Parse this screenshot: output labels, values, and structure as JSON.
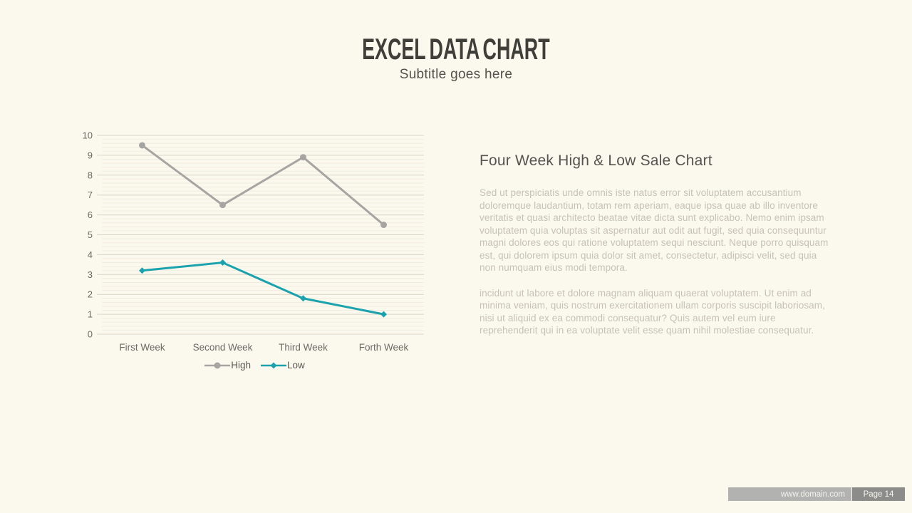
{
  "slide": {
    "title": "EXCEL DATA CHART",
    "subtitle": "Subtitle goes here"
  },
  "content": {
    "heading": "Four Week High & Low Sale Chart",
    "paragraph1": "Sed ut perspiciatis unde omnis iste natus error sit voluptatem accusantium doloremque laudantium, totam rem aperiam, eaque ipsa quae ab illo inventore veritatis et quasi architecto beatae vitae dicta sunt explicabo. Nemo enim ipsam voluptatem quia voluptas sit aspernatur aut odit aut fugit, sed quia consequuntur magni dolores eos qui ratione voluptatem sequi nesciunt. Neque porro quisquam est, qui dolorem ipsum quia dolor sit amet, consectetur, adipisci velit, sed quia non numquam eius modi tempora.",
    "paragraph2": "incidunt ut labore et dolore magnam aliquam quaerat voluptatem. Ut enim ad minima veniam, quis nostrum exercitationem ullam corporis suscipit laboriosam, nisi ut aliquid ex ea commodi consequatur? Quis autem vel eum iure reprehenderit qui in ea voluptate velit esse quam nihil molestiae consequatur."
  },
  "footer": {
    "website": "www.domain.com",
    "page": "Page 14"
  },
  "colors": {
    "background": "#fbf8ee",
    "series_high": "#a7a5a1",
    "series_low": "#1aa3ad",
    "grid_major": "#dbd6c8",
    "grid_minor": "#f1ecdf",
    "axis_label": "#6c6a63"
  },
  "chart_data": {
    "type": "line",
    "categories": [
      "First Week",
      "Second Week",
      "Third Week",
      "Forth Week"
    ],
    "series": [
      {
        "name": "High",
        "values": [
          9.5,
          6.5,
          8.9,
          5.5
        ],
        "color": "#a7a5a1",
        "marker": "circle"
      },
      {
        "name": "Low",
        "values": [
          3.2,
          3.6,
          1.8,
          1.0
        ],
        "color": "#1aa3ad",
        "marker": "diamond"
      }
    ],
    "ylim": [
      0,
      10
    ],
    "y_tick_step": 1,
    "minor_grid_step": 0.2,
    "grid": true,
    "legend_position": "bottom",
    "title": "",
    "xlabel": "",
    "ylabel": ""
  }
}
